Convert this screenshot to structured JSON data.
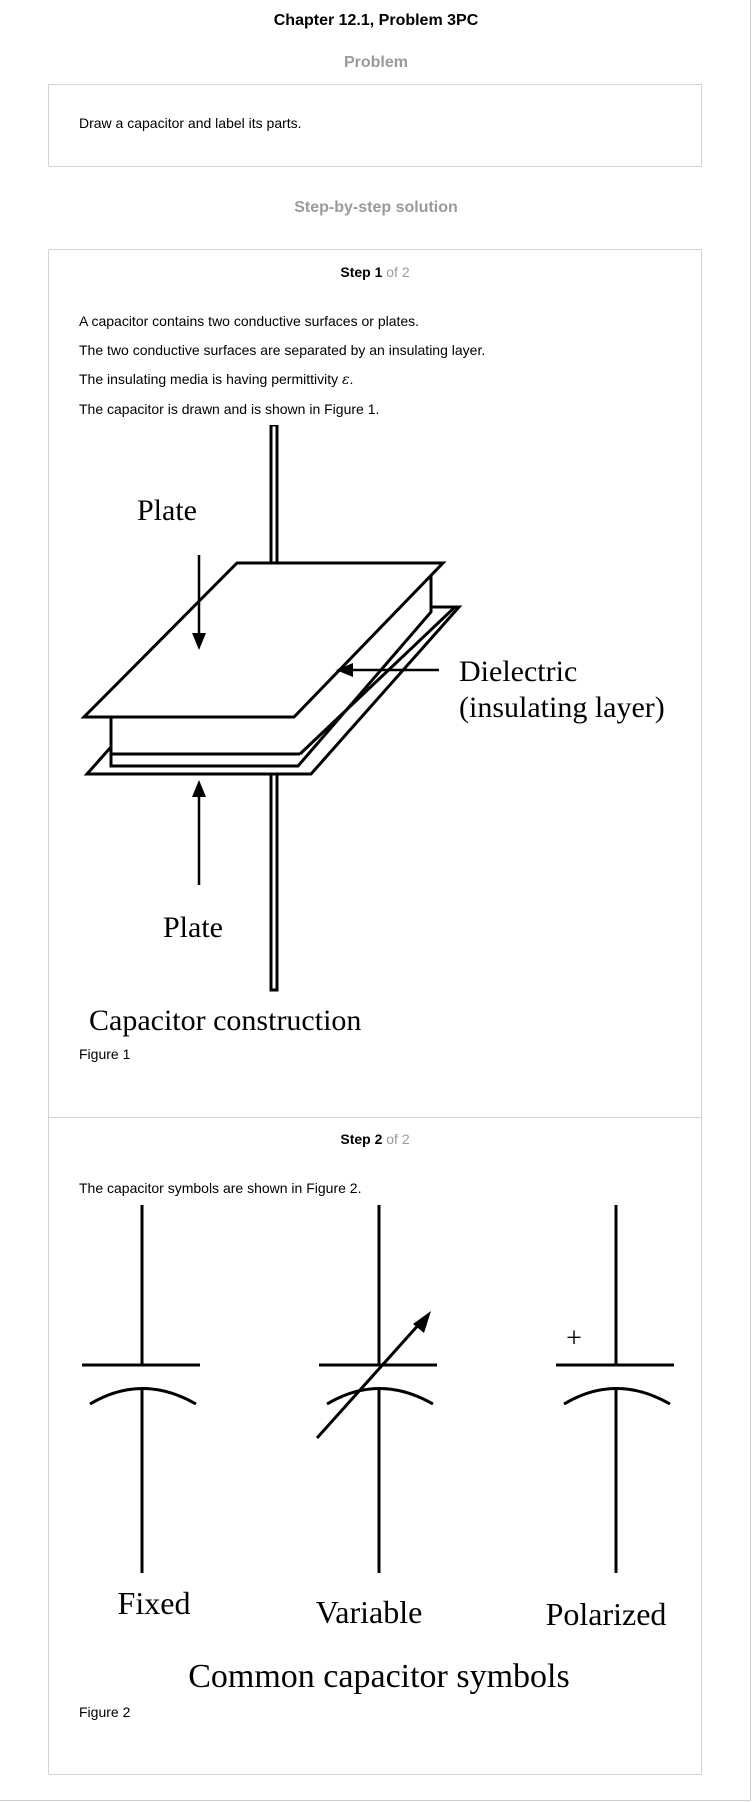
{
  "header": {
    "title": "Chapter 12.1, Problem 3PC"
  },
  "problem": {
    "heading": "Problem",
    "text": "Draw a capacitor and label its parts."
  },
  "solution": {
    "heading": "Step-by-step solution",
    "steps": [
      {
        "label": "Step 1",
        "of": "of 2",
        "paragraphs": [
          "A capacitor contains two conductive surfaces or plates.",
          "The two conductive surfaces are separated by an insulating layer.",
          "The insulating media is having permittivity ",
          "The capacitor is drawn and is shown in Figure 1."
        ],
        "permittivity_symbol": "ε",
        "permittivity_suffix": ".",
        "figure": {
          "labels": {
            "plate_top": "Plate",
            "plate_bottom": "Plate",
            "dielectric_line1": "Dielectric",
            "dielectric_line2": "(insulating layer)",
            "caption": "Capacitor construction"
          },
          "name": "Figure 1"
        }
      },
      {
        "label": "Step 2",
        "of": "of 2",
        "paragraphs": [
          "The capacitor symbols are shown in Figure 2."
        ],
        "figure": {
          "labels": {
            "fixed": "Fixed",
            "variable": "Variable",
            "polarized": "Polarized",
            "plus": "+",
            "caption": "Common capacitor symbols"
          },
          "name": "Figure 2"
        }
      }
    ]
  }
}
